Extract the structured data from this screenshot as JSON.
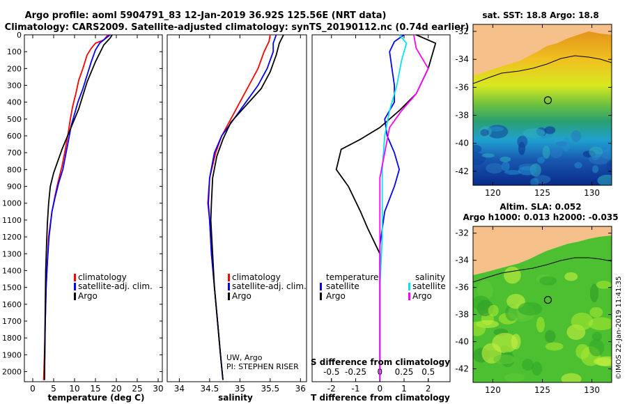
{
  "header": {
    "title_line1": "Argo profile: aoml 5904791_83 12-Jan-2019 36.92S 125.56E (NRT data)",
    "title_line2": "Climatology: CARS2009. Satellite-adjusted climatology: synTS_20190112.nc (0.74d earlier)"
  },
  "credit": "©IMOS 22-Jan-2019 11:41:35",
  "colors": {
    "climatology": "#ff0000",
    "satellite": "#0000ff",
    "argo": "#000000",
    "sal_satellite": "#00e5ee",
    "sal_argo": "#ff00ff",
    "land": "#f5c08a"
  },
  "chart_data": [
    {
      "type": "line",
      "id": "temperature",
      "xlabel": "temperature (deg C)",
      "xlim": [
        -2,
        31
      ],
      "ylim": [
        2060,
        0
      ],
      "yreverse": true,
      "xticks": [
        0,
        5,
        10,
        15,
        20,
        25,
        30
      ],
      "yticks": [
        0,
        100,
        200,
        300,
        400,
        500,
        600,
        700,
        800,
        900,
        1000,
        1100,
        1200,
        1300,
        1400,
        1500,
        1600,
        1700,
        1800,
        1900,
        2000
      ],
      "legend": [
        "climatology",
        "satellite-adj. clim.",
        "Argo"
      ],
      "series": [
        {
          "name": "climatology",
          "color": "#ff0000",
          "points": [
            [
              18,
              0
            ],
            [
              17,
              30
            ],
            [
              15,
              50
            ],
            [
              14,
              80
            ],
            [
              13,
              120
            ],
            [
              12,
              200
            ],
            [
              11,
              270
            ],
            [
              10.3,
              350
            ],
            [
              9.5,
              430
            ],
            [
              9,
              500
            ],
            [
              8.5,
              580
            ],
            [
              7.8,
              680
            ],
            [
              7,
              780
            ],
            [
              6,
              880
            ],
            [
              5.3,
              960
            ],
            [
              4.6,
              1050
            ],
            [
              3.8,
              1200
            ],
            [
              3.5,
              1350
            ],
            [
              3.2,
              1500
            ],
            [
              3,
              1700
            ],
            [
              2.8,
              1900
            ],
            [
              2.6,
              2050
            ]
          ]
        },
        {
          "name": "satellite-adj. clim.",
          "color": "#0000ff",
          "points": [
            [
              18.5,
              0
            ],
            [
              17.5,
              20
            ],
            [
              16,
              50
            ],
            [
              15,
              90
            ],
            [
              14,
              160
            ],
            [
              13,
              240
            ],
            [
              12,
              320
            ],
            [
              10.8,
              400
            ],
            [
              10,
              470
            ],
            [
              9.2,
              540
            ],
            [
              8.6,
              620
            ],
            [
              7.9,
              710
            ],
            [
              7.2,
              800
            ],
            [
              6.2,
              880
            ],
            [
              5.3,
              970
            ],
            [
              4.6,
              1050
            ],
            [
              3.9,
              1200
            ],
            [
              3.5,
              1350
            ],
            [
              3.2,
              1500
            ],
            [
              3,
              1700
            ],
            [
              2.9,
              1900
            ],
            [
              2.8,
              2050
            ]
          ]
        },
        {
          "name": "Argo",
          "color": "#000000",
          "points": [
            [
              19,
              0
            ],
            [
              18.5,
              20
            ],
            [
              17,
              60
            ],
            [
              16,
              110
            ],
            [
              15,
              160
            ],
            [
              14,
              220
            ],
            [
              13,
              280
            ],
            [
              12,
              360
            ],
            [
              11,
              440
            ],
            [
              10,
              500
            ],
            [
              9,
              560
            ],
            [
              8,
              620
            ],
            [
              7,
              680
            ],
            [
              6,
              750
            ],
            [
              5,
              820
            ],
            [
              4.2,
              900
            ],
            [
              3.8,
              1000
            ],
            [
              3.5,
              1120
            ],
            [
              3.3,
              1250
            ],
            [
              3.1,
              1400
            ],
            [
              3,
              1600
            ],
            [
              2.9,
              1800
            ],
            [
              2.8,
              2050
            ]
          ]
        }
      ]
    },
    {
      "type": "line",
      "id": "salinity",
      "xlabel": "salinity",
      "xlim": [
        33.8,
        36.1
      ],
      "ylim": [
        2060,
        0
      ],
      "yreverse": true,
      "xticks": [
        34,
        34.5,
        35,
        35.5,
        36
      ],
      "legend": [
        "climatology",
        "satellite-adj. clim.",
        "Argo"
      ],
      "annotations": [
        "UW, Argo",
        "PI: STEPHEN RISER"
      ],
      "series": [
        {
          "name": "climatology",
          "color": "#ff0000",
          "points": [
            [
              35.5,
              0
            ],
            [
              35.48,
              40
            ],
            [
              35.4,
              100
            ],
            [
              35.3,
              200
            ],
            [
              35.15,
              300
            ],
            [
              35,
              400
            ],
            [
              34.85,
              500
            ],
            [
              34.7,
              600
            ],
            [
              34.6,
              700
            ],
            [
              34.5,
              850
            ],
            [
              34.47,
              1000
            ],
            [
              34.5,
              1100
            ],
            [
              34.53,
              1300
            ],
            [
              34.58,
              1500
            ],
            [
              34.63,
              1700
            ],
            [
              34.68,
              1900
            ],
            [
              34.72,
              2050
            ]
          ]
        },
        {
          "name": "satellite-adj. clim.",
          "color": "#0000ff",
          "points": [
            [
              35.6,
              0
            ],
            [
              35.55,
              50
            ],
            [
              35.55,
              100
            ],
            [
              35.45,
              200
            ],
            [
              35.3,
              300
            ],
            [
              35.1,
              400
            ],
            [
              34.9,
              500
            ],
            [
              34.7,
              600
            ],
            [
              34.58,
              700
            ],
            [
              34.5,
              850
            ],
            [
              34.48,
              1000
            ],
            [
              34.5,
              1100
            ],
            [
              34.53,
              1300
            ],
            [
              34.58,
              1500
            ],
            [
              34.63,
              1700
            ],
            [
              34.68,
              1900
            ],
            [
              34.72,
              2050
            ]
          ]
        },
        {
          "name": "Argo",
          "color": "#000000",
          "points": [
            [
              35.72,
              0
            ],
            [
              35.65,
              50
            ],
            [
              35.6,
              120
            ],
            [
              35.5,
              220
            ],
            [
              35.35,
              320
            ],
            [
              35.1,
              420
            ],
            [
              34.85,
              520
            ],
            [
              34.72,
              620
            ],
            [
              34.62,
              720
            ],
            [
              34.55,
              850
            ],
            [
              34.53,
              1000
            ],
            [
              34.52,
              1100
            ],
            [
              34.55,
              1300
            ],
            [
              34.58,
              1500
            ],
            [
              34.63,
              1700
            ],
            [
              34.68,
              1900
            ],
            [
              34.72,
              2050
            ]
          ]
        }
      ]
    },
    {
      "type": "line",
      "id": "difference",
      "xlabel": "T difference from climatology",
      "xlabel_top": "S difference from climatology",
      "xlim": [
        -2.8,
        2.9
      ],
      "ylim": [
        2060,
        0
      ],
      "yreverse": true,
      "xticks": [
        -2,
        -1,
        0,
        1,
        2
      ],
      "s_ticks": [
        "-0.5",
        "-0.25",
        "0",
        "0.25",
        "0.5"
      ],
      "s_tick_positions": [
        -2,
        -1,
        0,
        1,
        2
      ],
      "legend_temperature": [
        "temperature",
        "satellite",
        "Argo"
      ],
      "legend_salinity": [
        "salinity",
        "satellite",
        "Argo"
      ],
      "series": [
        {
          "name": "T satellite",
          "color": "#0000ff",
          "points": [
            [
              1.0,
              0
            ],
            [
              0.6,
              40
            ],
            [
              0.4,
              100
            ],
            [
              0.5,
              200
            ],
            [
              0.6,
              300
            ],
            [
              0.6,
              400
            ],
            [
              0.2,
              500
            ],
            [
              0.3,
              600
            ],
            [
              0.6,
              700
            ],
            [
              0.8,
              800
            ],
            [
              0.6,
              900
            ],
            [
              0.2,
              1050
            ],
            [
              0,
              1250
            ],
            [
              0,
              2050
            ]
          ]
        },
        {
          "name": "T Argo",
          "color": "#000000",
          "points": [
            [
              1.5,
              0
            ],
            [
              2.3,
              50
            ],
            [
              2.0,
              200
            ],
            [
              1.5,
              350
            ],
            [
              0.8,
              450
            ],
            [
              0,
              550
            ],
            [
              -0.8,
              620
            ],
            [
              -1.6,
              680
            ],
            [
              -1.8,
              800
            ],
            [
              -1.3,
              900
            ],
            [
              -0.8,
              1050
            ],
            [
              -0.5,
              1150
            ],
            [
              0,
              1300
            ],
            [
              0,
              2050
            ]
          ]
        },
        {
          "name": "S satellite",
          "color": "#00e5ee",
          "points": [
            [
              0.8,
              0
            ],
            [
              1.1,
              50
            ],
            [
              0.9,
              150
            ],
            [
              0.7,
              300
            ],
            [
              0.4,
              450
            ],
            [
              0.2,
              600
            ],
            [
              0.1,
              800
            ],
            [
              0.1,
              1000
            ],
            [
              0.1,
              1200
            ],
            [
              0,
              1500
            ],
            [
              0,
              2050
            ]
          ]
        },
        {
          "name": "S Argo",
          "color": "#ff00ff",
          "points": [
            [
              1.4,
              0
            ],
            [
              1.5,
              80
            ],
            [
              2.0,
              200
            ],
            [
              1.5,
              350
            ],
            [
              0.9,
              450
            ],
            [
              0.4,
              550
            ],
            [
              0.2,
              700
            ],
            [
              0,
              850
            ],
            [
              0,
              1500
            ],
            [
              0,
              2050
            ]
          ]
        }
      ]
    },
    {
      "type": "heatmap",
      "id": "sst-map",
      "title": "sat. SST: 18.8  Argo: 18.8",
      "xticks": [
        120,
        125,
        130
      ],
      "yticks": [
        -32,
        -34,
        -36,
        -38,
        -40,
        -42
      ],
      "xlim": [
        118,
        132
      ],
      "ylim": [
        -43,
        -31.5
      ],
      "marker": [
        125.56,
        -36.92
      ]
    },
    {
      "type": "heatmap",
      "id": "sla-map",
      "title_line1": "Altim. SLA: 0.052",
      "title_line2": "Argo h1000: 0.013 h2000: -0.035",
      "xticks": [
        120,
        125,
        130
      ],
      "yticks": [
        -32,
        -34,
        -36,
        -38,
        -40,
        -42
      ],
      "xlim": [
        118,
        132
      ],
      "ylim": [
        -43,
        -31.5
      ],
      "marker": [
        125.56,
        -36.92
      ]
    }
  ]
}
